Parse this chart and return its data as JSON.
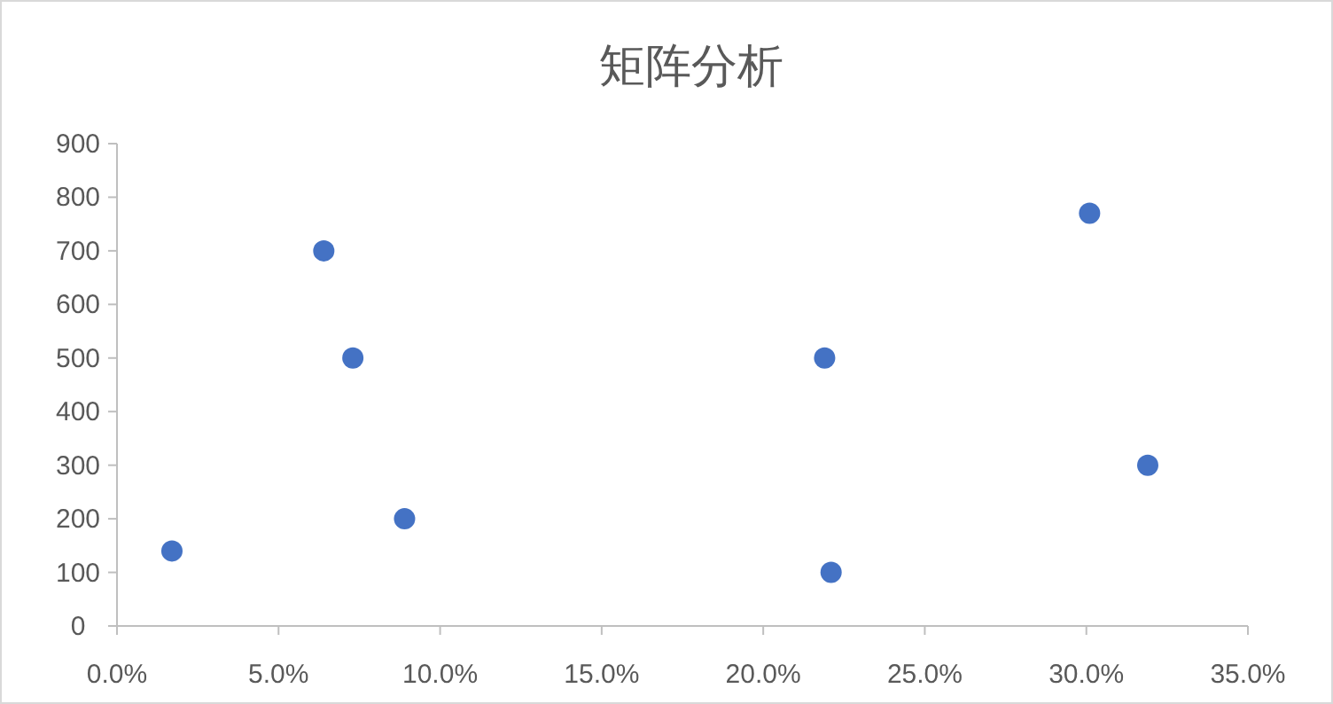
{
  "chart_data": {
    "type": "scatter",
    "title": "矩阵分析",
    "x": [
      1.7,
      6.4,
      7.3,
      8.9,
      21.9,
      22.1,
      30.1,
      31.9
    ],
    "values": [
      140,
      700,
      500,
      200,
      500,
      100,
      770,
      300
    ],
    "color": "#4472c4",
    "marker": "circle",
    "xlim": [
      0,
      35
    ],
    "xticks": [
      {
        "value": 0,
        "label": "0.0%"
      },
      {
        "value": 5,
        "label": "5.0%"
      },
      {
        "value": 10,
        "label": "10.0%"
      },
      {
        "value": 15,
        "label": "15.0%"
      },
      {
        "value": 20,
        "label": "20.0%"
      },
      {
        "value": 25,
        "label": "25.0%"
      },
      {
        "value": 30,
        "label": "30.0%"
      },
      {
        "value": 35,
        "label": "35.0%"
      }
    ],
    "ylim": [
      0,
      900
    ],
    "yticks": [
      0,
      100,
      200,
      300,
      400,
      500,
      600,
      700,
      800,
      900
    ]
  }
}
